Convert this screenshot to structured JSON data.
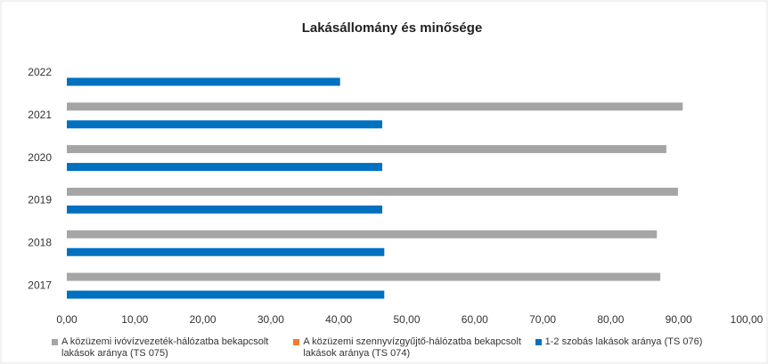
{
  "chart_data": {
    "type": "hbar",
    "title": "Lakásállomány és minősége",
    "categories": [
      "2017",
      "2018",
      "2019",
      "2020",
      "2021",
      "2022"
    ],
    "series": [
      {
        "name": "A közüzemi ivóvízvezeték-hálózatba bekapcsolt lakások aránya (TS 075)",
        "color": "#a5a5a5",
        "values": [
          87.3,
          86.8,
          89.9,
          88.2,
          90.6,
          null
        ]
      },
      {
        "name": "A közüzemi szennyvízgyűjtő-hálózatba bekapcsolt lakások aránya (TS 074)",
        "color": "#ed7d31",
        "values": [
          null,
          null,
          null,
          null,
          null,
          null
        ]
      },
      {
        "name": "1-2 szobás lakások aránya (TS 076)",
        "color": "#0070c0",
        "values": [
          46.7,
          46.7,
          46.4,
          46.4,
          46.4,
          40.2
        ]
      }
    ],
    "xlim": [
      0,
      100
    ],
    "xticks": [
      {
        "value": 0,
        "label": "0,00"
      },
      {
        "value": 10,
        "label": "10,00"
      },
      {
        "value": 20,
        "label": "20,00"
      },
      {
        "value": 30,
        "label": "30,00"
      },
      {
        "value": 40,
        "label": "40,00"
      },
      {
        "value": 50,
        "label": "50,00"
      },
      {
        "value": 60,
        "label": "60,00"
      },
      {
        "value": 70,
        "label": "70,00"
      },
      {
        "value": 80,
        "label": "80,00"
      },
      {
        "value": 90,
        "label": "90,00"
      },
      {
        "value": 100,
        "label": "100,00"
      }
    ],
    "legend": "bottom"
  }
}
